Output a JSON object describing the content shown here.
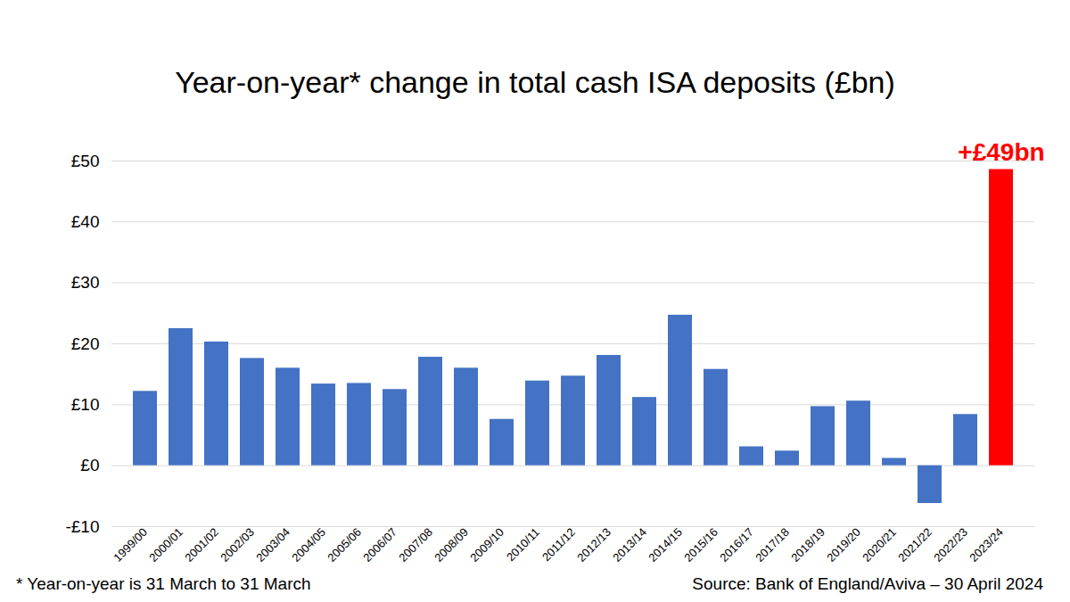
{
  "chart_data": {
    "type": "bar",
    "title": "Year-on-year* change in total cash ISA deposits (£bn)",
    "footnote": "* Year-on-year is 31 March to 31 March",
    "source": "Source: Bank of England/Aviva – 30 April 2024",
    "categories": [
      "1999/00",
      "2000/01",
      "2001/02",
      "2002/03",
      "2003/04",
      "2004/05",
      "2005/06",
      "2006/07",
      "2007/08",
      "2008/09",
      "2009/10",
      "2010/11",
      "2011/12",
      "2012/13",
      "2013/14",
      "2014/15",
      "2015/16",
      "2016/17",
      "2017/18",
      "2018/19",
      "2019/20",
      "2020/21",
      "2021/22",
      "2022/23",
      "2023/24"
    ],
    "values": [
      12.2,
      22.5,
      20.3,
      17.6,
      16.0,
      13.4,
      13.5,
      12.5,
      17.8,
      16.0,
      7.6,
      13.9,
      14.7,
      18.1,
      11.2,
      24.7,
      15.8,
      3.1,
      2.4,
      9.7,
      10.6,
      1.2,
      -6.2,
      8.4,
      48.6
    ],
    "colors": [
      "#4472c4",
      "#4472c4",
      "#4472c4",
      "#4472c4",
      "#4472c4",
      "#4472c4",
      "#4472c4",
      "#4472c4",
      "#4472c4",
      "#4472c4",
      "#4472c4",
      "#4472c4",
      "#4472c4",
      "#4472c4",
      "#4472c4",
      "#4472c4",
      "#4472c4",
      "#4472c4",
      "#4472c4",
      "#4472c4",
      "#4472c4",
      "#4472c4",
      "#4472c4",
      "#4472c4",
      "#ff0000"
    ],
    "value_labels": [
      null,
      null,
      null,
      null,
      null,
      null,
      null,
      null,
      null,
      null,
      null,
      null,
      null,
      null,
      null,
      null,
      null,
      null,
      null,
      null,
      null,
      null,
      null,
      null,
      "+£49bn"
    ],
    "ylim": [
      -10,
      50
    ],
    "yticks": [
      {
        "value": -10,
        "label": "-£10"
      },
      {
        "value": 0,
        "label": "£0"
      },
      {
        "value": 10,
        "label": "£10"
      },
      {
        "value": 20,
        "label": "£20"
      },
      {
        "value": 30,
        "label": "£30"
      },
      {
        "value": 40,
        "label": "£40"
      },
      {
        "value": 50,
        "label": "£50"
      }
    ],
    "grid": true
  }
}
